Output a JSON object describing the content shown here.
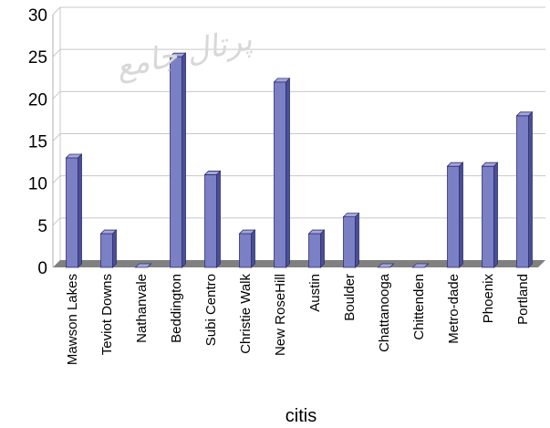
{
  "chart_data": {
    "type": "bar",
    "categories": [
      "Mawson Lakes",
      "Teviot Downs",
      "Nathanvale",
      "Beddington",
      "Subi Centro",
      "Christie Walk",
      "New RoseHill",
      "Austin",
      "Boulder",
      "Chattanooga",
      "Chittenden",
      "Metro-dade",
      "Phoenix",
      "Portland"
    ],
    "values": [
      13,
      4,
      0,
      25,
      11,
      4,
      22,
      4,
      6,
      0,
      0,
      12,
      12,
      18
    ],
    "xlabel": "citis",
    "ylabel": "",
    "ylim": [
      0,
      30
    ],
    "yticks": [
      0,
      5,
      10,
      15,
      20,
      25,
      30
    ],
    "grid": true,
    "colors": {
      "bar_front": "#7b7fc4",
      "bar_side": "#4a4e96",
      "bar_top": "#a3a6dc",
      "floor": "#808080",
      "grid": "#c8c8c8"
    },
    "watermark": "پرتال جامع"
  }
}
